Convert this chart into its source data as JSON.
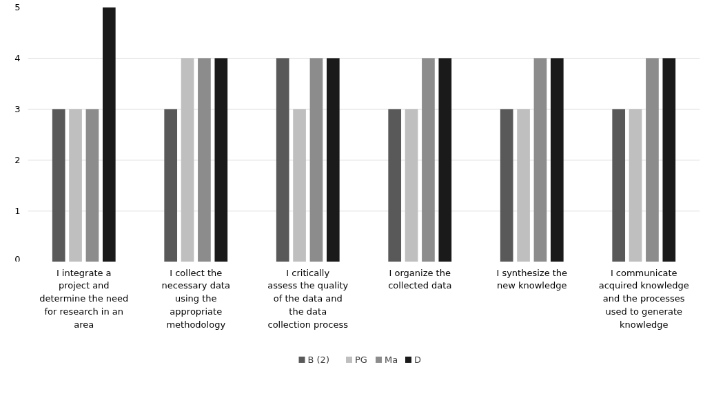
{
  "chart_data": {
    "type": "bar",
    "categories": [
      "I integrate a project and determine the need for research in an area",
      "I collect the necessary data using the appropriate methodology",
      "I critically assess the quality of the data and the data collection process",
      "I organize the collected data",
      "I synthesize the new knowledge",
      "I communicate acquired knowledge and the processes used to generate knowledge"
    ],
    "series": [
      {
        "name": "B (2)",
        "color": "#595959",
        "values": [
          3,
          3,
          4,
          3,
          3,
          3
        ]
      },
      {
        "name": "PG",
        "color": "#bfbfbf",
        "values": [
          3,
          4,
          3,
          3,
          3,
          3
        ]
      },
      {
        "name": "Ma",
        "color": "#8c8c8c",
        "values": [
          3,
          4,
          4,
          4,
          4,
          4
        ]
      },
      {
        "name": "D",
        "color": "#1a1a1a",
        "values": [
          5,
          4,
          4,
          4,
          4,
          4
        ]
      }
    ],
    "ylim": [
      0,
      5
    ],
    "yticks": [
      0,
      1,
      2,
      3,
      4,
      5
    ],
    "grid": "y",
    "legend": "bottom"
  }
}
